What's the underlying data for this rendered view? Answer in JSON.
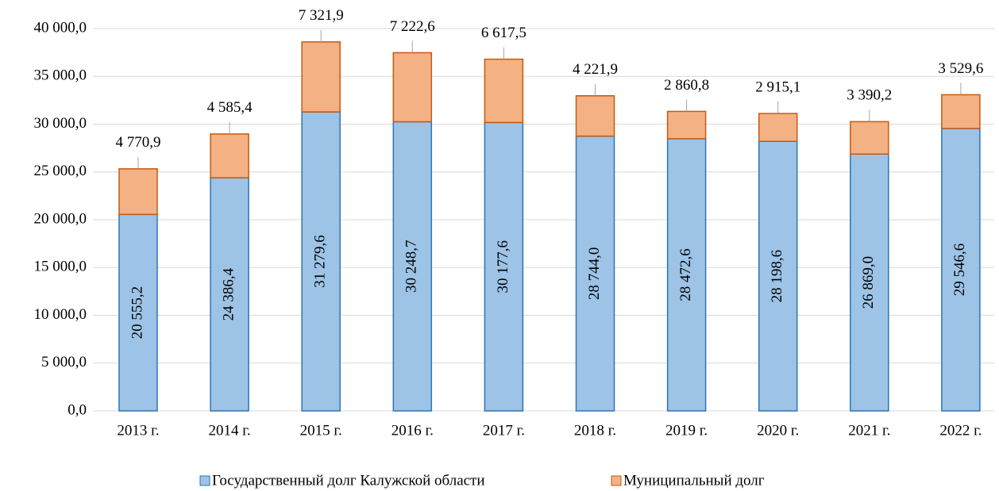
{
  "chart_data": {
    "type": "stacked_bar",
    "categories": [
      "2013 г.",
      "2014 г.",
      "2015 г.",
      "2016 г.",
      "2017 г.",
      "2018 г.",
      "2019 г.",
      "2020 г.",
      "2021 г.",
      "2022 г."
    ],
    "series": [
      {
        "name": "Государственный долг Калужской области",
        "color": "#9dc3e6",
        "stroke": "#2e75b6",
        "values": [
          20555.2,
          24386.4,
          31279.6,
          30248.7,
          30177.6,
          28744.0,
          28472.6,
          28198.6,
          26869.0,
          29546.6
        ],
        "value_labels": [
          "20 555,2",
          "24 386,4",
          "31 279,6",
          "30 248,7",
          "30 177,6",
          "28 744,0",
          "28 472,6",
          "28 198,6",
          "26 869,0",
          "29 546,6"
        ]
      },
      {
        "name": "Муниципальный долг",
        "color": "#f4b183",
        "stroke": "#c55a11",
        "values": [
          4770.9,
          4585.4,
          7321.9,
          7222.6,
          6617.5,
          4221.9,
          2860.8,
          2915.1,
          3390.2,
          3529.6
        ],
        "value_labels": [
          "4 770,9",
          "4 585,4",
          "7 321,9",
          "7 222,6",
          "6 617,5",
          "4 221,9",
          "2 860,8",
          "2 915,1",
          "3 390,2",
          "3 529,6"
        ]
      }
    ],
    "ylim": [
      0,
      40000
    ],
    "yticks": [
      {
        "value": 0,
        "label": "0,0"
      },
      {
        "value": 5000,
        "label": "5 000,0"
      },
      {
        "value": 10000,
        "label": "10 000,0"
      },
      {
        "value": 15000,
        "label": "15 000,0"
      },
      {
        "value": 20000,
        "label": "20 000,0"
      },
      {
        "value": 25000,
        "label": "25 000,0"
      },
      {
        "value": 30000,
        "label": "30 000,0"
      },
      {
        "value": 35000,
        "label": "35 000,0"
      },
      {
        "value": 40000,
        "label": "40 000,0"
      }
    ],
    "grid": true,
    "legend": "bottom"
  }
}
